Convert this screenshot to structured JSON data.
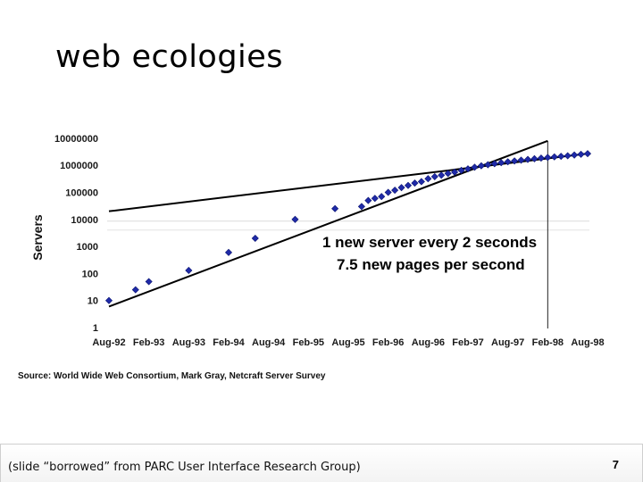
{
  "slide": {
    "title": "web ecologies",
    "source": "Source: World Wide Web Consortium, Mark Gray, Netcraft Server Survey",
    "footer_credit": "(slide “borrowed” from PARC User Interface Research Group)",
    "page_number": "7"
  },
  "chart_data": {
    "type": "scatter",
    "title": "",
    "xlabel": "",
    "ylabel": "Servers",
    "y_scale": "log",
    "ylim": [
      1,
      10000000
    ],
    "y_tick_labels": [
      "1",
      "10",
      "100",
      "1000",
      "10000",
      "100000",
      "1000000",
      "10000000"
    ],
    "x_tick_labels": [
      "Aug-92",
      "Feb-93",
      "Aug-93",
      "Feb-94",
      "Aug-94",
      "Feb-95",
      "Aug-95",
      "Feb-96",
      "Aug-96",
      "Feb-97",
      "Aug-97",
      "Feb-98",
      "Aug-98"
    ],
    "xlim": [
      "1992-08",
      "1998-08"
    ],
    "marker_color": "#1f2aa8",
    "series": [
      {
        "points": [
          [
            "1992-08",
            10
          ],
          [
            "1992-12",
            25
          ],
          [
            "1993-02",
            50
          ],
          [
            "1993-08",
            130
          ],
          [
            "1994-02",
            600
          ],
          [
            "1994-06",
            2000
          ],
          [
            "1994-12",
            10000
          ],
          [
            "1995-06",
            25000
          ],
          [
            "1995-10",
            30000
          ],
          [
            "1995-11",
            50000
          ],
          [
            "1995-12",
            60000
          ],
          [
            "1996-01",
            70000
          ],
          [
            "1996-02",
            100000
          ],
          [
            "1996-03",
            120000
          ],
          [
            "1996-04",
            150000
          ],
          [
            "1996-05",
            180000
          ],
          [
            "1996-06",
            220000
          ],
          [
            "1996-07",
            250000
          ],
          [
            "1996-08",
            320000
          ],
          [
            "1996-09",
            380000
          ],
          [
            "1996-10",
            430000
          ],
          [
            "1996-11",
            500000
          ],
          [
            "1996-12",
            560000
          ],
          [
            "1997-01",
            650000
          ],
          [
            "1997-02",
            740000
          ],
          [
            "1997-03",
            850000
          ],
          [
            "1997-04",
            960000
          ],
          [
            "1997-05",
            1050000
          ],
          [
            "1997-06",
            1150000
          ],
          [
            "1997-07",
            1250000
          ],
          [
            "1997-08",
            1350000
          ],
          [
            "1997-09",
            1450000
          ],
          [
            "1997-10",
            1550000
          ],
          [
            "1997-11",
            1650000
          ],
          [
            "1997-12",
            1750000
          ],
          [
            "1998-01",
            1850000
          ],
          [
            "1998-02",
            1950000
          ],
          [
            "1998-03",
            2050000
          ],
          [
            "1998-04",
            2150000
          ],
          [
            "1998-05",
            2250000
          ],
          [
            "1998-06",
            2400000
          ],
          [
            "1998-07",
            2550000
          ],
          [
            "1998-08",
            2700000
          ]
        ]
      }
    ],
    "trend_lines": [
      {
        "from": [
          "1992-08",
          6
        ],
        "to": [
          "1998-02",
          8000000
        ]
      },
      {
        "from": [
          "1992-08",
          20000
        ],
        "to": [
          "1998-08",
          2700000
        ]
      }
    ],
    "vertical_marker": "1998-02",
    "reference_line": 10000,
    "annotations": [
      "1 new server every 2 seconds",
      "7.5 new pages per second"
    ]
  }
}
